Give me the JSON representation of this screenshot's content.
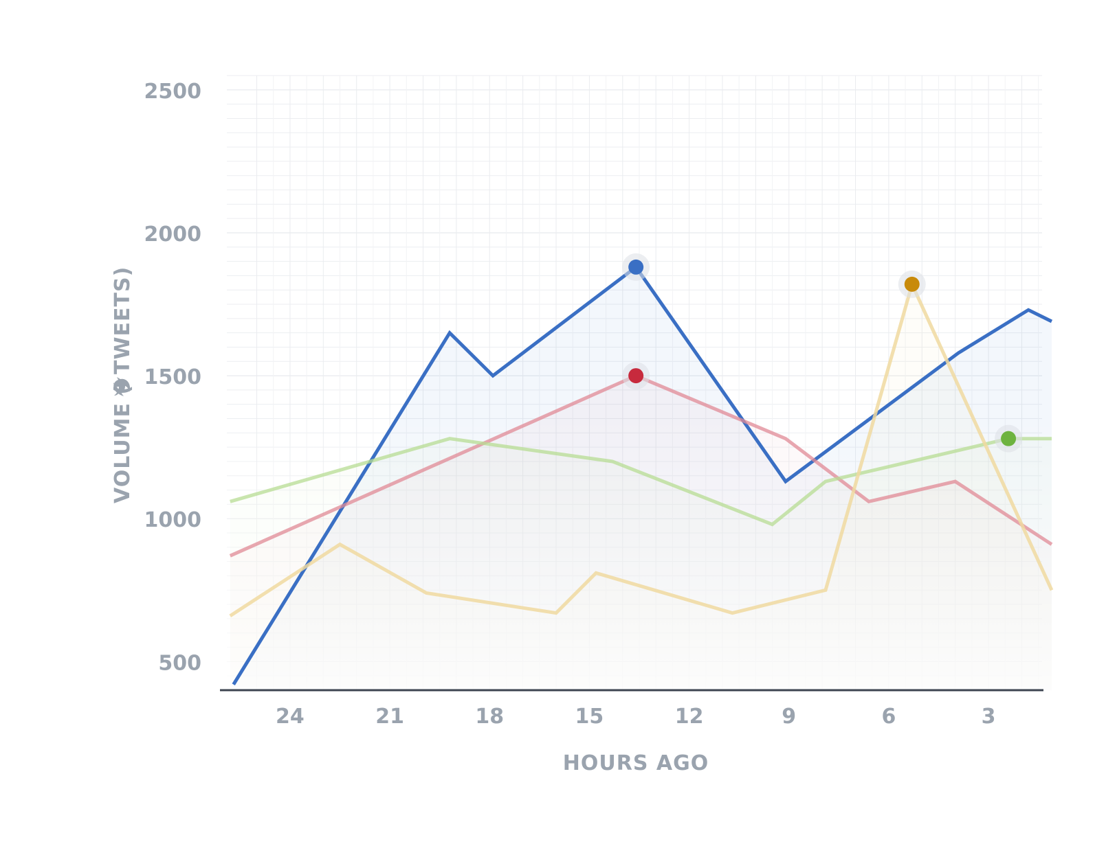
{
  "chart_data": {
    "type": "line",
    "xlabel": "HOURS AGO",
    "ylabel_before_icon": "VOLUME (",
    "ylabel_after_icon": "TWEETS)",
    "ylabel_icon": "twitter-bird-icon",
    "x_reversed": true,
    "xlim": [
      25.9,
      1.1
    ],
    "ylim": [
      400,
      2550
    ],
    "x_ticks": [
      24,
      21,
      18,
      15,
      12,
      9,
      6,
      3
    ],
    "y_ticks": [
      500,
      1000,
      1500,
      2000,
      2500
    ],
    "grid": true,
    "series": [
      {
        "color": "#3a6fc4",
        "opacity": 1,
        "fill": true,
        "points": [
          [
            25.7,
            420
          ],
          [
            19.2,
            1650
          ],
          [
            17.9,
            1500
          ],
          [
            13.6,
            1880
          ],
          [
            9.1,
            1130
          ],
          [
            3.9,
            1580
          ],
          [
            1.8,
            1730
          ],
          [
            1.1,
            1690
          ]
        ],
        "highlight": [
          13.6,
          1880
        ]
      },
      {
        "color": "#e08a96",
        "opacity": 0.75,
        "fill": true,
        "points": [
          [
            25.8,
            870
          ],
          [
            13.6,
            1500
          ],
          [
            9.1,
            1280
          ],
          [
            6.6,
            1060
          ],
          [
            4.0,
            1130
          ],
          [
            1.1,
            910
          ]
        ],
        "highlight": [
          13.6,
          1500
        ]
      },
      {
        "color": "#b7dc93",
        "opacity": 0.75,
        "fill": true,
        "points": [
          [
            25.8,
            1060
          ],
          [
            19.2,
            1280
          ],
          [
            14.3,
            1200
          ],
          [
            9.5,
            980
          ],
          [
            7.9,
            1130
          ],
          [
            2.4,
            1280
          ],
          [
            1.1,
            1280
          ]
        ],
        "highlight": [
          2.4,
          1280
        ]
      },
      {
        "color": "#f0d9a0",
        "opacity": 0.85,
        "fill": true,
        "points": [
          [
            25.8,
            660
          ],
          [
            22.5,
            910
          ],
          [
            19.9,
            740
          ],
          [
            16.0,
            670
          ],
          [
            14.8,
            810
          ],
          [
            10.7,
            670
          ],
          [
            7.9,
            750
          ],
          [
            5.3,
            1820
          ],
          [
            1.1,
            750
          ]
        ],
        "highlight": [
          5.3,
          1820
        ]
      }
    ],
    "highlight_colors": [
      "#3a6fc4",
      "#c72a3d",
      "#6db33f",
      "#c88a0a"
    ]
  }
}
